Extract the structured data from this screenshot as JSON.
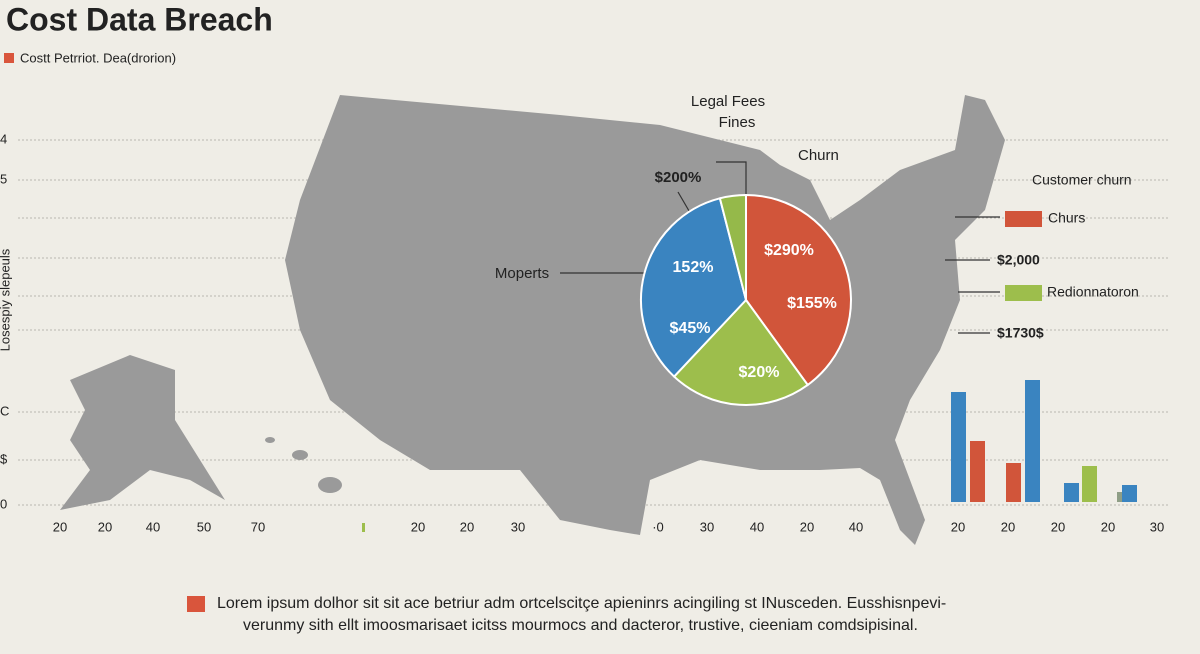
{
  "title": "Cost Data Breach",
  "legend": {
    "label": "Costt Petrriot. Dea(drorion)",
    "color": "#d9553c"
  },
  "side_label": "Losespiy slepeuls",
  "left_ticks": [
    "4",
    "5",
    "C",
    "$",
    "0"
  ],
  "x_label_rows": [
    [
      "20",
      "20",
      "40",
      "50",
      "70"
    ],
    [
      "20",
      "20",
      "30"
    ],
    [
      "·0",
      "30",
      "40",
      "20",
      "40"
    ],
    [
      "20",
      "20",
      "20",
      "20",
      "30"
    ]
  ],
  "annotations": [
    "Legal Fees",
    "Fines",
    "Churn",
    "$200%",
    "Moperts",
    "152%",
    "$45%",
    "$20%",
    "$290%",
    "$155%",
    "Customer churn",
    "Churs",
    "$2,000",
    "Redionnatoron",
    "$1730$"
  ],
  "chart_data": [
    {
      "type": "pie",
      "values": [
        40,
        22,
        34,
        4
      ],
      "colors": [
        "#d1553a",
        "#9dbe4c",
        "#3a84c0",
        "#95b94a"
      ]
    },
    {
      "type": "bar",
      "values": [
        110,
        61,
        39,
        122,
        19,
        36,
        17,
        10
      ],
      "colors": [
        "#3a84c0",
        "#d1553a",
        "#d1553a",
        "#3a84c0",
        "#3a84c0",
        "#9dbe4c",
        "#3a84c0",
        "#8f9e86"
      ],
      "ylim": [
        0,
        130
      ]
    }
  ],
  "footer": {
    "lines": [
      "Lorem ipsum dolhor sit sit ace betriur adm ortcelscitçe apieninrs acingiling st INusceden. Eusshisnpevi-",
      "verunmy sith ellt imoosmarisaet icitss mourmocs and dacteror, trustive, cieeniam comdsipisinal."
    ],
    "color": "#d9553c"
  }
}
